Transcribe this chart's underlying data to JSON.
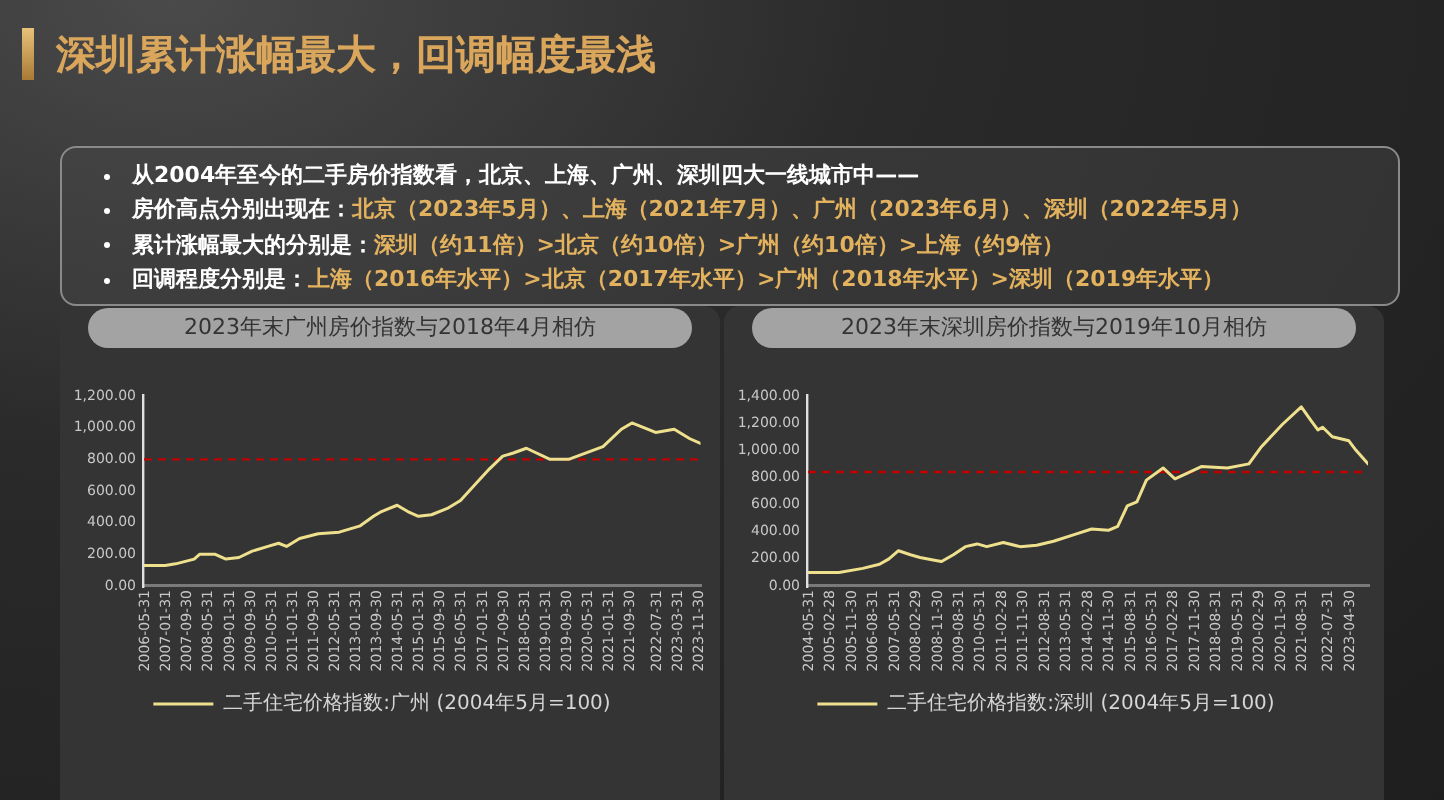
{
  "chart_data": [
    {
      "type": "other",
      "title": "深圳累计涨幅最大，回调幅度最浅",
      "annotations": [
        "从2004年至今的二手房价指数看，北京、上海、广州、深圳四大一线城市中——",
        "房价高点分别出现在：北京（2023年5月）、上海（2021年7月）、广州（2023年6月）、深圳（2022年5月）",
        "累计涨幅最大的分别是：深圳（约11倍）>北京（约10倍）>广州（约10倍）>上海（约9倍）",
        "回调程度分别是：上海（2016年水平）>北京（2017年水平）>广州（2018年水平）>深圳（2019年水平）"
      ]
    },
    {
      "type": "line",
      "title": "2023年末广州房价指数与2018年4月相仿",
      "x": [
        "2006-05",
        "2007-01",
        "2007-05",
        "2007-12",
        "2008-02",
        "2008-08",
        "2008-12",
        "2009-05",
        "2009-10",
        "2010-04",
        "2010-08",
        "2010-11",
        "2011-04",
        "2011-11",
        "2012-07",
        "2013-03",
        "2013-08",
        "2013-11",
        "2014-05",
        "2014-09",
        "2015-01",
        "2015-06",
        "2015-12",
        "2016-05",
        "2016-11",
        "2017-04",
        "2017-09",
        "2018-01",
        "2018-06",
        "2019-03",
        "2019-10",
        "2020-11",
        "2021-06",
        "2021-10",
        "2022-07",
        "2023-02",
        "2023-08",
        "2023-12"
      ],
      "series": [
        {
          "name": "二手住宅价格指数:广州 (2004年5月=100)",
          "color": "#eee08c",
          "values": [
            130,
            130,
            140,
            170,
            200,
            200,
            170,
            180,
            220,
            250,
            270,
            250,
            300,
            330,
            340,
            380,
            440,
            470,
            510,
            470,
            440,
            450,
            490,
            540,
            650,
            740,
            820,
            840,
            870,
            800,
            800,
            880,
            990,
            1030,
            970,
            990,
            930,
            900
          ]
        }
      ],
      "xlim": [
        "2006-05",
        "2023-12"
      ],
      "xticks": [
        "2006-05-31",
        "2007-01-31",
        "2007-09-30",
        "2008-05-31",
        "2009-01-31",
        "2009-09-30",
        "2010-05-31",
        "2011-01-31",
        "2011-09-30",
        "2012-05-31",
        "2013-01-31",
        "2013-09-30",
        "2014-05-31",
        "2015-01-31",
        "2015-09-30",
        "2016-05-31",
        "2017-01-31",
        "2017-09-30",
        "2018-05-31",
        "2019-01-31",
        "2019-09-30",
        "2020-05-31",
        "2021-01-31",
        "2021-09-30",
        "2022-07-31",
        "2023-03-31",
        "2023-11-30"
      ],
      "ylim": [
        0,
        1200
      ],
      "yticks": [
        {
          "value": 0,
          "label": "0.00"
        },
        {
          "value": 200,
          "label": "200.00"
        },
        {
          "value": 400,
          "label": "400.00"
        },
        {
          "value": 600,
          "label": "600.00"
        },
        {
          "value": 800,
          "label": "800.00"
        },
        {
          "value": 1000,
          "label": "1,000.00"
        },
        {
          "value": 1200,
          "label": "1,200.00"
        }
      ],
      "ref_lines": [
        {
          "axis": "y",
          "value": 800,
          "color": "#c00000",
          "line_style": "dashed"
        }
      ],
      "legend": "bottom",
      "marker": "none",
      "line_style": "solid"
    },
    {
      "type": "line",
      "title": "2023年末深圳房价指数与2019年10月相仿",
      "x": [
        "2004-05",
        "2005-06",
        "2006-04",
        "2006-11",
        "2007-03",
        "2007-07",
        "2007-12",
        "2008-04",
        "2008-10",
        "2009-01",
        "2009-06",
        "2009-11",
        "2010-04",
        "2010-08",
        "2011-03",
        "2011-10",
        "2012-05",
        "2012-12",
        "2013-09",
        "2014-04",
        "2014-11",
        "2015-03",
        "2015-07",
        "2015-11",
        "2016-03",
        "2016-10",
        "2017-03",
        "2017-08",
        "2018-02",
        "2019-01",
        "2019-10",
        "2020-03",
        "2020-12",
        "2021-08",
        "2021-12",
        "2022-03",
        "2022-05",
        "2022-09",
        "2023-04",
        "2023-07",
        "2023-12"
      ],
      "series": [
        {
          "name": "二手住宅价格指数:深圳 (2004年5月=100)",
          "color": "#eee08c",
          "values": [
            100,
            100,
            130,
            160,
            200,
            260,
            230,
            210,
            190,
            180,
            230,
            290,
            310,
            290,
            320,
            290,
            300,
            330,
            380,
            420,
            410,
            440,
            590,
            620,
            780,
            870,
            790,
            830,
            880,
            870,
            900,
            1020,
            1190,
            1320,
            1220,
            1150,
            1170,
            1100,
            1070,
            1000,
            900
          ]
        }
      ],
      "xlim": [
        "2004-05",
        "2023-12"
      ],
      "xticks": [
        "2004-05-31",
        "2005-02-28",
        "2005-11-30",
        "2006-08-31",
        "2007-05-31",
        "2008-02-29",
        "2008-11-30",
        "2009-08-31",
        "2010-05-31",
        "2011-02-28",
        "2011-11-30",
        "2012-08-31",
        "2013-05-31",
        "2014-02-28",
        "2014-11-30",
        "2015-08-31",
        "2016-05-31",
        "2017-02-28",
        "2017-11-30",
        "2018-08-31",
        "2019-05-31",
        "2020-02-29",
        "2020-11-30",
        "2021-08-31",
        "2022-07-31",
        "2023-04-30"
      ],
      "ylim": [
        0,
        1400
      ],
      "yticks": [
        {
          "value": 0,
          "label": "0.00"
        },
        {
          "value": 200,
          "label": "200.00"
        },
        {
          "value": 400,
          "label": "400.00"
        },
        {
          "value": 600,
          "label": "600.00"
        },
        {
          "value": 800,
          "label": "800.00"
        },
        {
          "value": 1000,
          "label": "1,000.00"
        },
        {
          "value": 1200,
          "label": "1,200.00"
        },
        {
          "value": 1400,
          "label": "1,400.00"
        }
      ],
      "ref_lines": [
        {
          "axis": "y",
          "value": 840,
          "color": "#c00000",
          "line_style": "dashed"
        }
      ],
      "legend": "bottom",
      "marker": "none",
      "line_style": "solid"
    }
  ]
}
